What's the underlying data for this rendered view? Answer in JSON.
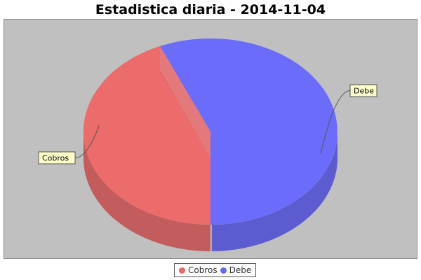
{
  "chart_data": {
    "type": "pie",
    "title": "Estadistica diaria - 2014-11-04",
    "categories": [
      "Cobros",
      "Debe"
    ],
    "values": [
      43.5,
      56.5
    ],
    "colors": [
      "#ee6666",
      "#6666ff"
    ],
    "background": "#c0c0c0",
    "style": "3d",
    "labels": [
      "Cobros",
      "Debe"
    ],
    "legend": "bottom"
  }
}
